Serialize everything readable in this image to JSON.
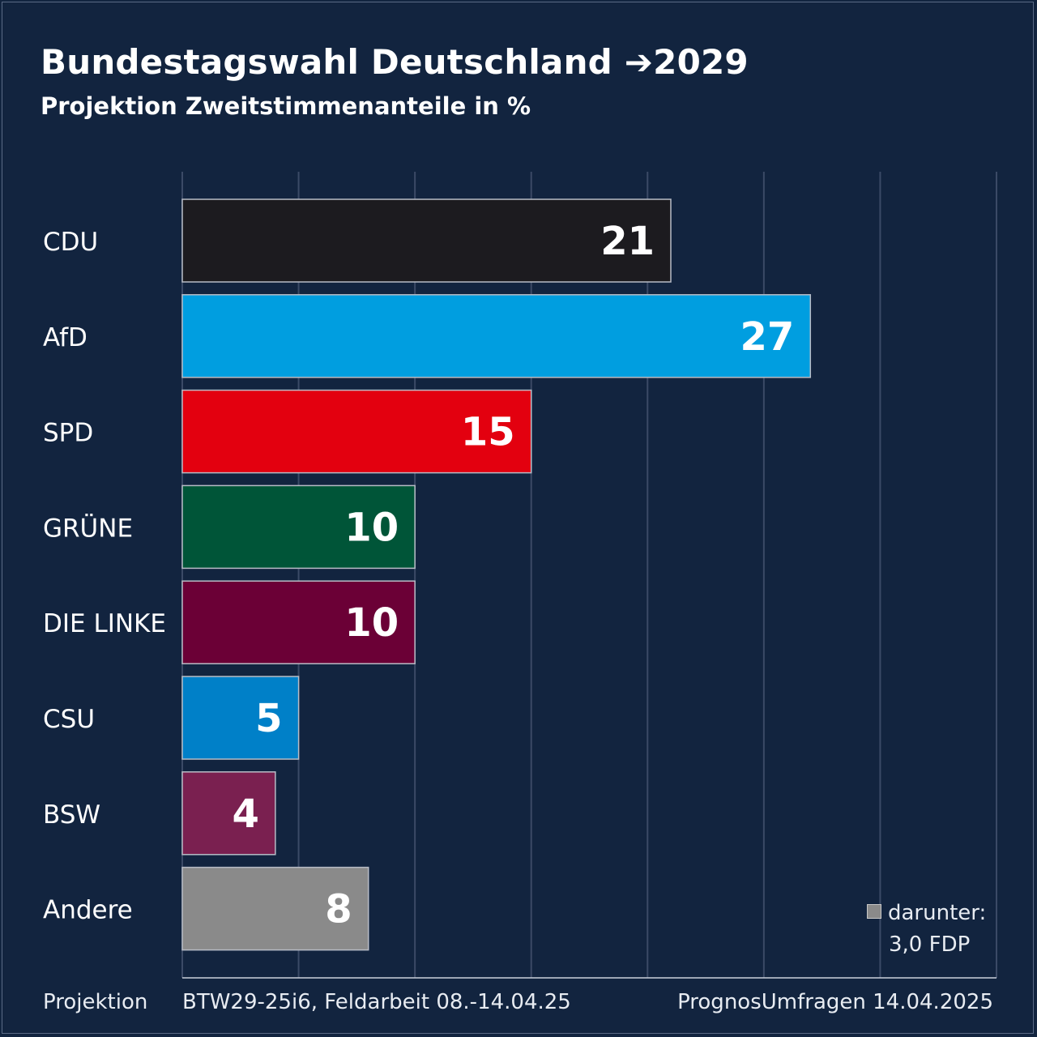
{
  "header": {
    "title": "Bundestagswahl Deutschland ➔2029",
    "subtitle": "Projektion Zweitstimmenanteile in %"
  },
  "chart_data": {
    "type": "bar",
    "orientation": "horizontal",
    "categories": [
      "CDU",
      "AfD",
      "SPD",
      "GRÜNE",
      "DIE LINKE",
      "CSU",
      "BSW",
      "Andere"
    ],
    "values": [
      21,
      27,
      15,
      10,
      10,
      5,
      4,
      8
    ],
    "value_labels": [
      "21",
      "27",
      "15",
      "10",
      "10",
      "5",
      "4",
      "8"
    ],
    "colors": [
      "#1c1b1f",
      "#009ee0",
      "#e3000f",
      "#005538",
      "#6b0036",
      "#0080c8",
      "#7a2050",
      "#8a8a8a"
    ],
    "xlim": [
      0,
      35
    ],
    "grid": true,
    "title": "Bundestagswahl Deutschland ➔2029",
    "subtitle": "Projektion Zweitstimmenanteile in %"
  },
  "note": {
    "line1": "darunter:",
    "line2": "3,0 FDP"
  },
  "footer": {
    "left": "Projektion",
    "middle": "BTW29-25i6, Feldarbeit 08.-14.04.25",
    "right": "PrognosUmfragen 14.04.2025"
  }
}
